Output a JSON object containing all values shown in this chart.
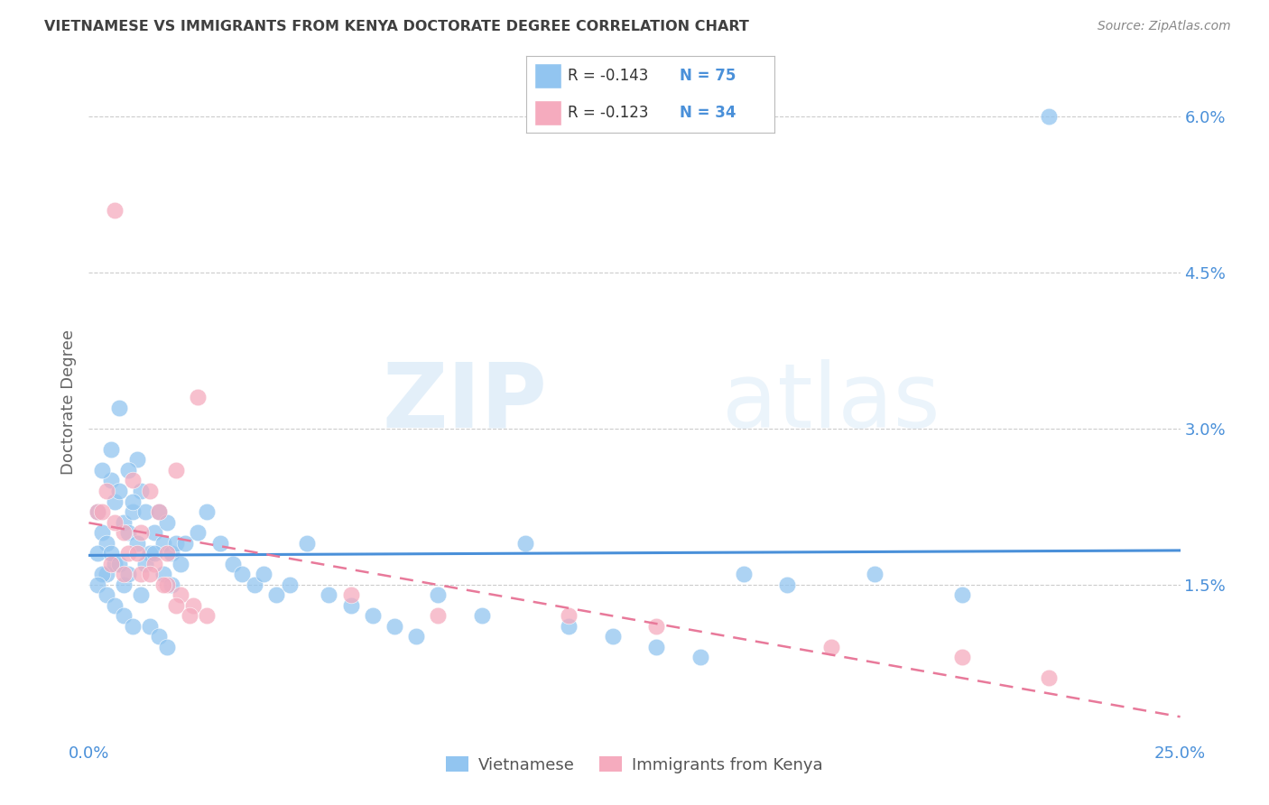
{
  "title": "VIETNAMESE VS IMMIGRANTS FROM KENYA DOCTORATE DEGREE CORRELATION CHART",
  "source": "Source: ZipAtlas.com",
  "ylabel": "Doctorate Degree",
  "xlim": [
    0.0,
    0.25
  ],
  "ylim": [
    0.0,
    0.065
  ],
  "yticks": [
    0.015,
    0.03,
    0.045,
    0.06
  ],
  "ytick_labels": [
    "1.5%",
    "3.0%",
    "4.5%",
    "6.0%"
  ],
  "xticks": [
    0.0,
    0.25
  ],
  "xtick_labels": [
    "0.0%",
    "25.0%"
  ],
  "watermark_zip": "ZIP",
  "watermark_atlas": "atlas",
  "legend_r1": "R = -0.143",
  "legend_n1": "N = 75",
  "legend_r2": "R = -0.123",
  "legend_n2": "N = 34",
  "blue_color": "#92C5F0",
  "pink_color": "#F5ABBE",
  "line_blue": "#4A90D9",
  "line_pink": "#E8799A",
  "title_color": "#404040",
  "axis_label_color": "#4A90D9",
  "right_tick_color": "#4A90D9",
  "background": "#FFFFFF",
  "viet_x": [
    0.002,
    0.003,
    0.004,
    0.005,
    0.006,
    0.007,
    0.008,
    0.009,
    0.01,
    0.011,
    0.012,
    0.013,
    0.014,
    0.015,
    0.016,
    0.017,
    0.018,
    0.019,
    0.02,
    0.021,
    0.003,
    0.005,
    0.007,
    0.009,
    0.002,
    0.004,
    0.006,
    0.008,
    0.01,
    0.003,
    0.005,
    0.007,
    0.009,
    0.011,
    0.013,
    0.015,
    0.017,
    0.019,
    0.022,
    0.025,
    0.027,
    0.03,
    0.033,
    0.035,
    0.038,
    0.04,
    0.043,
    0.046,
    0.05,
    0.055,
    0.06,
    0.065,
    0.07,
    0.075,
    0.08,
    0.09,
    0.1,
    0.11,
    0.12,
    0.13,
    0.14,
    0.15,
    0.16,
    0.18,
    0.002,
    0.004,
    0.006,
    0.008,
    0.01,
    0.012,
    0.014,
    0.016,
    0.018,
    0.2,
    0.22
  ],
  "viet_y": [
    0.022,
    0.02,
    0.019,
    0.025,
    0.023,
    0.024,
    0.021,
    0.02,
    0.022,
    0.027,
    0.024,
    0.022,
    0.018,
    0.02,
    0.022,
    0.019,
    0.021,
    0.018,
    0.019,
    0.017,
    0.026,
    0.028,
    0.032,
    0.026,
    0.018,
    0.016,
    0.017,
    0.015,
    0.023,
    0.016,
    0.018,
    0.017,
    0.016,
    0.019,
    0.017,
    0.018,
    0.016,
    0.015,
    0.019,
    0.02,
    0.022,
    0.019,
    0.017,
    0.016,
    0.015,
    0.016,
    0.014,
    0.015,
    0.019,
    0.014,
    0.013,
    0.012,
    0.011,
    0.01,
    0.014,
    0.012,
    0.019,
    0.011,
    0.01,
    0.009,
    0.008,
    0.016,
    0.015,
    0.016,
    0.015,
    0.014,
    0.013,
    0.012,
    0.011,
    0.014,
    0.011,
    0.01,
    0.009,
    0.014,
    0.06
  ],
  "kenya_x": [
    0.002,
    0.004,
    0.006,
    0.008,
    0.01,
    0.012,
    0.014,
    0.016,
    0.018,
    0.02,
    0.003,
    0.006,
    0.009,
    0.012,
    0.015,
    0.018,
    0.021,
    0.024,
    0.027,
    0.005,
    0.008,
    0.011,
    0.014,
    0.017,
    0.02,
    0.023,
    0.06,
    0.08,
    0.11,
    0.13,
    0.17,
    0.2,
    0.22,
    0.025
  ],
  "kenya_y": [
    0.022,
    0.024,
    0.051,
    0.02,
    0.025,
    0.02,
    0.024,
    0.022,
    0.018,
    0.026,
    0.022,
    0.021,
    0.018,
    0.016,
    0.017,
    0.015,
    0.014,
    0.013,
    0.012,
    0.017,
    0.016,
    0.018,
    0.016,
    0.015,
    0.013,
    0.012,
    0.014,
    0.012,
    0.012,
    0.011,
    0.009,
    0.008,
    0.006,
    0.033
  ]
}
